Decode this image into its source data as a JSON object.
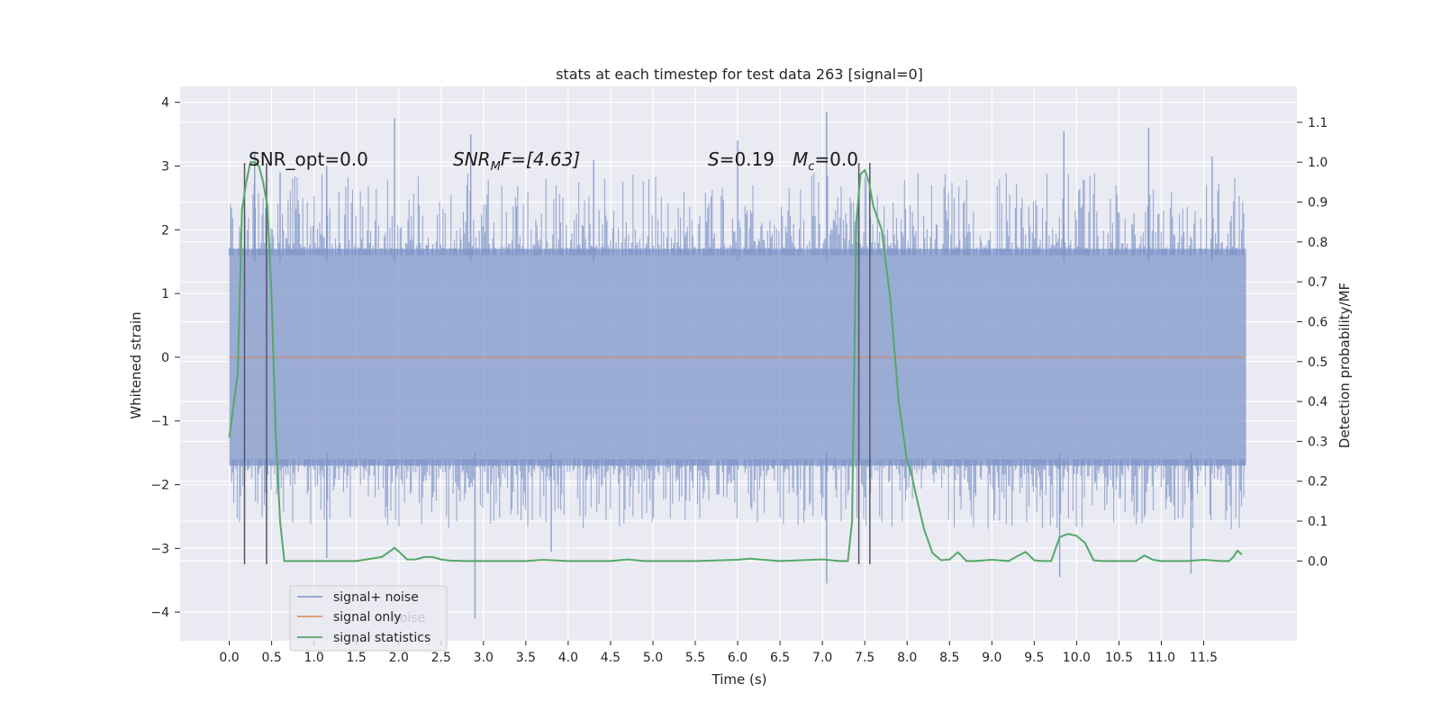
{
  "chart_data": {
    "type": "line",
    "title": "stats at each timestep for test data 263 [signal=0]",
    "xlabel": "Time (s)",
    "ylabel_left": "Whitened strain",
    "ylabel_right": "Detection probability/MF",
    "xlim": [
      -0.58,
      12.6
    ],
    "ylim_left": [
      -4.45,
      4.25
    ],
    "ylim_right": [
      -0.2,
      1.19
    ],
    "x_ticks": [
      0.0,
      0.5,
      1.0,
      1.5,
      2.0,
      2.5,
      3.0,
      3.5,
      4.0,
      4.5,
      5.0,
      5.5,
      6.0,
      6.5,
      7.0,
      7.5,
      8.0,
      8.5,
      9.0,
      9.5,
      10.0,
      10.5,
      11.0,
      11.5
    ],
    "x_tick_labels": [
      "0.0",
      "0.5",
      "1.0",
      "1.5",
      "2.0",
      "2.5",
      "3.0",
      "3.5",
      "4.0",
      "4.5",
      "5.0",
      "5.5",
      "6.0",
      "6.5",
      "7.0",
      "7.5",
      "8.0",
      "8.5",
      "9.0",
      "9.5",
      "10.0",
      "10.5",
      "11.0",
      "11.5"
    ],
    "y_left_ticks": [
      4,
      3,
      2,
      1,
      0,
      -1,
      -2,
      -3,
      -4
    ],
    "y_left_tick_labels": [
      "4",
      "3",
      "2",
      "1",
      "0",
      "−1",
      "−2",
      "−3",
      "−4"
    ],
    "y_right_ticks": [
      1.1,
      1.0,
      0.9,
      0.8,
      0.7,
      0.6,
      0.5,
      0.4,
      0.3,
      0.2,
      0.1,
      0.0
    ],
    "y_right_tick_labels": [
      "1.1",
      "1.0",
      "0.9",
      "0.8",
      "0.7",
      "0.6",
      "0.5",
      "0.4",
      "0.3",
      "0.2",
      "0.1",
      "0.0"
    ],
    "grid": true,
    "legend_placement": "lower-left",
    "series": [
      {
        "name": "signal+ noise",
        "color": "#7b93c7",
        "axis": "left",
        "x_range": [
          0.0,
          12.0
        ],
        "envelope_upper": 1.7,
        "envelope_lower": -1.7,
        "spikes": [
          [
            0.3,
            3.2
          ],
          [
            0.6,
            2.9
          ],
          [
            1.15,
            3.0
          ],
          [
            1.95,
            3.75
          ],
          [
            2.85,
            3.5
          ],
          [
            4.3,
            3.1
          ],
          [
            6.0,
            3.4
          ],
          [
            7.05,
            3.85
          ],
          [
            9.85,
            3.55
          ],
          [
            10.85,
            3.6
          ],
          [
            11.6,
            3.15
          ],
          [
            2.9,
            -4.1
          ],
          [
            7.05,
            -3.55
          ],
          [
            9.8,
            -3.45
          ],
          [
            11.35,
            -3.4
          ],
          [
            1.15,
            -3.15
          ],
          [
            3.8,
            -3.05
          ]
        ]
      },
      {
        "name": "signal only",
        "color": "#dd8452",
        "axis": "left",
        "x": [
          0.0,
          12.0
        ],
        "y": [
          0.0,
          0.0
        ]
      },
      {
        "name": "signal statistics",
        "color": "#55a868",
        "axis": "right",
        "x": [
          0.0,
          0.1,
          0.15,
          0.2,
          0.25,
          0.3,
          0.35,
          0.4,
          0.45,
          0.5,
          0.55,
          0.6,
          0.65,
          0.7,
          1.0,
          1.5,
          1.8,
          1.9,
          1.95,
          2.0,
          2.1,
          2.2,
          2.3,
          2.4,
          2.5,
          2.6,
          2.8,
          3.5,
          3.7,
          4.0,
          4.5,
          4.7,
          4.9,
          5.5,
          6.0,
          6.15,
          6.3,
          6.5,
          7.0,
          7.2,
          7.3,
          7.35,
          7.4,
          7.45,
          7.5,
          7.55,
          7.6,
          7.7,
          7.8,
          7.9,
          8.0,
          8.05,
          8.1,
          8.2,
          8.3,
          8.4,
          8.5,
          8.55,
          8.6,
          8.7,
          8.8,
          9.0,
          9.2,
          9.3,
          9.4,
          9.5,
          9.6,
          9.7,
          9.8,
          9.9,
          10.0,
          10.1,
          10.2,
          10.3,
          10.4,
          10.5,
          10.7,
          10.8,
          10.9,
          11.0,
          11.1,
          11.3,
          11.5,
          11.7,
          11.8,
          11.85,
          11.9,
          11.95
        ],
        "y": [
          0.31,
          0.47,
          0.88,
          0.95,
          1.0,
          1.0,
          0.99,
          0.95,
          0.89,
          0.66,
          0.31,
          0.1,
          0.0,
          0.0,
          0.0,
          0.0,
          0.01,
          0.025,
          0.033,
          0.024,
          0.004,
          0.004,
          0.01,
          0.01,
          0.004,
          0.001,
          0.0,
          0.0,
          0.003,
          0.0,
          0.0,
          0.004,
          0.0,
          0.0,
          0.003,
          0.006,
          0.003,
          0.0,
          0.004,
          0.0,
          0.0,
          0.1,
          0.85,
          0.97,
          0.98,
          0.95,
          0.89,
          0.83,
          0.66,
          0.4,
          0.25,
          0.22,
          0.17,
          0.08,
          0.02,
          0.002,
          0.004,
          0.013,
          0.022,
          0.0,
          0.0,
          0.003,
          0.0,
          0.012,
          0.023,
          0.002,
          0.0,
          0.0,
          0.06,
          0.068,
          0.063,
          0.045,
          0.002,
          0.0,
          0.0,
          0.0,
          0.0,
          0.014,
          0.003,
          0.0,
          0.0,
          0.0,
          0.003,
          0.0,
          0.0,
          0.01,
          0.026,
          0.016
        ]
      }
    ],
    "vertical_markers": [
      {
        "x": 0.18,
        "y_top": 3.05,
        "y_bottom": -3.25
      },
      {
        "x": 0.44,
        "y_top": 3.05,
        "y_bottom": -3.25
      },
      {
        "x": 7.43,
        "y_top": 3.05,
        "y_bottom": -3.25
      },
      {
        "x": 7.56,
        "y_top": 3.05,
        "y_bottom": -3.25
      }
    ],
    "annotations": {
      "snr_opt": "SNR_opt=0.0",
      "snr_mf_base": "SNR",
      "snr_mf_sub": "M",
      "snr_mf_rest": "F=[4.63]",
      "s_label": "S",
      "s_value": "=0.19",
      "mc_label": "M",
      "mc_sub": "c",
      "mc_value": "=0.0"
    },
    "legend_ghost_text": "noise"
  }
}
